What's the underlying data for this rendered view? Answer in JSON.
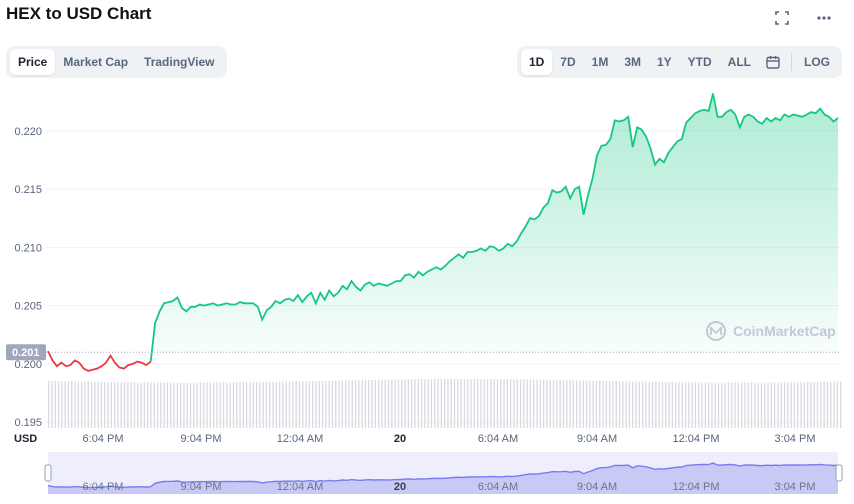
{
  "header": {
    "title": "HEX to USD Chart",
    "fullscreen_icon": "expand-icon",
    "more_icon": "more-icon"
  },
  "view_tabs": [
    {
      "label": "Price",
      "active": true
    },
    {
      "label": "Market Cap",
      "active": false
    },
    {
      "label": "TradingView",
      "active": false
    }
  ],
  "range_tabs": [
    {
      "label": "1D",
      "active": true
    },
    {
      "label": "7D",
      "active": false
    },
    {
      "label": "1M",
      "active": false
    },
    {
      "label": "3M",
      "active": false
    },
    {
      "label": "1Y",
      "active": false
    },
    {
      "label": "YTD",
      "active": false
    },
    {
      "label": "ALL",
      "active": false
    }
  ],
  "calendar_icon": "calendar-icon",
  "log_label": "LOG",
  "watermark": "CoinMarketCap",
  "currency_label": "USD",
  "colors": {
    "up": "#16c784",
    "down": "#ea3943",
    "navigator": "#7b7bf0",
    "volume": "#d7dae0"
  },
  "chart_data": {
    "type": "line",
    "y_ticks": [
      "0.220",
      "0.215",
      "0.210",
      "0.205",
      "0.200",
      "0.195"
    ],
    "x_ticks": [
      "6:04 PM",
      "9:04 PM",
      "12:04 AM",
      "20",
      "6:04 AM",
      "9:04 AM",
      "12:04 PM",
      "3:04 PM"
    ],
    "ylim": [
      0.1945,
      0.2235
    ],
    "reference_value": 0.201,
    "reference_label": "0.201",
    "series": [
      {
        "values": [
          0.2011,
          0.2003,
          0.1998,
          0.2001,
          0.1998,
          0.1999,
          0.2003,
          0.2001,
          0.1996,
          0.1994,
          0.1995,
          0.1996,
          0.1998,
          0.2001,
          0.2007,
          0.2001,
          0.1997,
          0.1996,
          0.1999,
          0.2,
          0.2002,
          0.2001,
          0.1999,
          0.2002,
          0.2035,
          0.2045,
          0.2052,
          0.2053,
          0.2054,
          0.2057,
          0.2048,
          0.2045,
          0.2049,
          0.2049,
          0.2051,
          0.205,
          0.2051,
          0.2052,
          0.205,
          0.2051,
          0.2052,
          0.2051,
          0.2051,
          0.2053,
          0.2052,
          0.2052,
          0.2052,
          0.2049,
          0.2038,
          0.2046,
          0.2049,
          0.2054,
          0.2052,
          0.2055,
          0.2056,
          0.2054,
          0.2059,
          0.2053,
          0.2058,
          0.2061,
          0.2052,
          0.2061,
          0.2055,
          0.2063,
          0.2058,
          0.2061,
          0.2067,
          0.2064,
          0.2071,
          0.2066,
          0.2063,
          0.2068,
          0.207,
          0.2067,
          0.2069,
          0.2068,
          0.2067,
          0.2069,
          0.2071,
          0.2071,
          0.2076,
          0.2077,
          0.2074,
          0.2079,
          0.2076,
          0.2079,
          0.2081,
          0.2083,
          0.2081,
          0.2084,
          0.2088,
          0.2091,
          0.2094,
          0.2091,
          0.2096,
          0.2096,
          0.2097,
          0.2099,
          0.2097,
          0.2101,
          0.21,
          0.2097,
          0.2099,
          0.2103,
          0.2101,
          0.2105,
          0.2112,
          0.2118,
          0.2125,
          0.2124,
          0.2127,
          0.2134,
          0.2138,
          0.2149,
          0.2147,
          0.2148,
          0.2152,
          0.2142,
          0.215,
          0.2152,
          0.2128,
          0.2145,
          0.2159,
          0.2179,
          0.2187,
          0.2188,
          0.2193,
          0.2209,
          0.2208,
          0.2209,
          0.2212,
          0.2186,
          0.2203,
          0.2201,
          0.2195,
          0.2185,
          0.2171,
          0.2176,
          0.2173,
          0.2181,
          0.2186,
          0.2191,
          0.2193,
          0.2207,
          0.2211,
          0.2215,
          0.2217,
          0.2218,
          0.2217,
          0.2232,
          0.2212,
          0.2212,
          0.2216,
          0.2218,
          0.2214,
          0.2203,
          0.2212,
          0.2214,
          0.2212,
          0.2208,
          0.2206,
          0.2211,
          0.2208,
          0.2211,
          0.2209,
          0.2214,
          0.2212,
          0.2214,
          0.2213,
          0.2212,
          0.2214,
          0.2216,
          0.2215,
          0.2219,
          0.2214,
          0.2212,
          0.2208,
          0.2211
        ]
      }
    ],
    "xlabel": "",
    "ylabel": "",
    "grid": true
  }
}
